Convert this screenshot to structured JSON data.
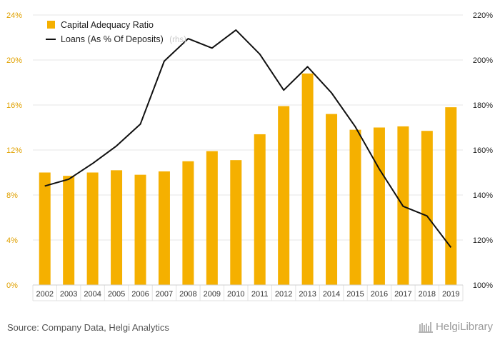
{
  "chart_data": {
    "type": "bar",
    "categories": [
      "2002",
      "2003",
      "2004",
      "2005",
      "2006",
      "2007",
      "2008",
      "2009",
      "2010",
      "2011",
      "2012",
      "2013",
      "2014",
      "2015",
      "2016",
      "2017",
      "2018",
      "2019"
    ],
    "series": [
      {
        "name": "Capital Adequacy Ratio",
        "type": "bar",
        "axis": "left",
        "color": "#f5b000",
        "values": [
          10.0,
          9.7,
          10.0,
          10.2,
          9.8,
          10.1,
          11.0,
          11.9,
          11.1,
          13.4,
          15.9,
          18.8,
          15.2,
          13.8,
          14.0,
          14.1,
          13.7,
          15.8
        ]
      },
      {
        "name": "Loans (As % Of Deposits)",
        "type": "line",
        "axis": "right",
        "color": "#111111",
        "values": [
          144.0,
          147.0,
          154.0,
          161.8,
          171.5,
          199.5,
          209.5,
          205.3,
          213.3,
          202.6,
          186.6,
          197.0,
          185.4,
          170.3,
          151.6,
          135.0,
          130.7,
          116.7
        ]
      }
    ],
    "left_axis": {
      "ylim": [
        0,
        24
      ],
      "tick_labels": [
        "0%",
        "4%",
        "8%",
        "12%",
        "16%",
        "20%",
        "24%"
      ]
    },
    "right_axis": {
      "ylim": [
        100,
        220
      ],
      "tick_labels": [
        "100%",
        "120%",
        "140%",
        "160%",
        "180%",
        "200%",
        "220%"
      ]
    },
    "legend": {
      "position": "top-left",
      "entries": [
        "Capital Adequacy Ratio",
        "Loans (As % Of Deposits)"
      ],
      "rhs_note": "(rhs)"
    },
    "grid": true
  },
  "footer": {
    "source": "Source: Company Data, Helgi Analytics",
    "brand": "HelgiLibrary"
  }
}
